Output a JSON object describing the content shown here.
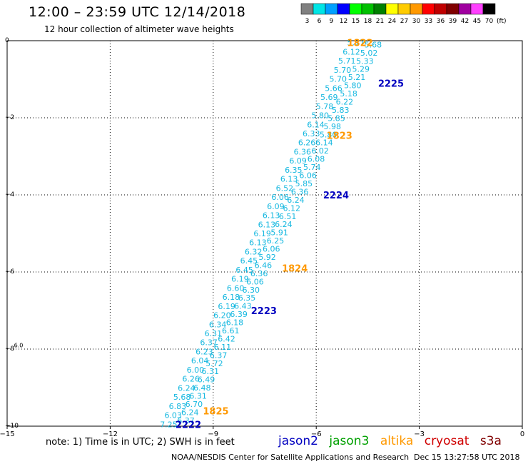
{
  "header": {
    "title": "12:00 – 23:59 UTC 12/14/2018",
    "subtitle": "12 hour collection of altimeter wave heights"
  },
  "colorbar": {
    "unit": "(ft)",
    "bins": [
      {
        "label": "3",
        "color": "#808080"
      },
      {
        "label": "6",
        "color": "#00e5e5"
      },
      {
        "label": "9",
        "color": "#00a0ff"
      },
      {
        "label": "12",
        "color": "#0000ff"
      },
      {
        "label": "15",
        "color": "#00ff00"
      },
      {
        "label": "18",
        "color": "#00c000"
      },
      {
        "label": "21",
        "color": "#008000"
      },
      {
        "label": "24",
        "color": "#ffff00"
      },
      {
        "label": "27",
        "color": "#ffcc00"
      },
      {
        "label": "30",
        "color": "#ff9900"
      },
      {
        "label": "33",
        "color": "#ff0000"
      },
      {
        "label": "36",
        "color": "#c00000"
      },
      {
        "label": "39",
        "color": "#800000"
      },
      {
        "label": "42",
        "color": "#a000a0"
      },
      {
        "label": "45",
        "color": "#ff40ff"
      },
      {
        "label": "70",
        "color": "#000000"
      }
    ]
  },
  "map": {
    "lon_range": [
      -15,
      0
    ],
    "lat_range": [
      -10,
      0
    ],
    "x_ticks": [
      "−15",
      "−12",
      "−9",
      "−6",
      "−3",
      "0"
    ],
    "y_ticks": [
      "0",
      "−2",
      "−4",
      "−6",
      "−8",
      "−10"
    ],
    "swh_color": "#16b8e0",
    "track_labels": [
      {
        "text": "1822",
        "lon": -5.1,
        "lat": -0.05,
        "color": "#ff9900"
      },
      {
        "text": "2225",
        "lon": -4.2,
        "lat": -1.1,
        "color": "#0000c0"
      },
      {
        "text": "1823",
        "lon": -5.7,
        "lat": -2.45,
        "color": "#ff9900"
      },
      {
        "text": "2224",
        "lon": -5.8,
        "lat": -4.0,
        "color": "#0000c0"
      },
      {
        "text": "1824",
        "lon": -7.0,
        "lat": -5.9,
        "color": "#ff9900"
      },
      {
        "text": "2223",
        "lon": -7.9,
        "lat": -7.0,
        "color": "#0000c0"
      },
      {
        "text": "1825",
        "lon": -9.3,
        "lat": -9.6,
        "color": "#ff9900"
      },
      {
        "text": "2222",
        "lon": -10.1,
        "lat": -9.95,
        "color": "#0000c0"
      }
    ],
    "tracks": [
      {
        "start": {
          "lon": -5.1,
          "lat": -0.05
        },
        "end": {
          "lon": -10.55,
          "lat": -9.95
        },
        "values": [
          "5.77",
          "6.12",
          "5.71",
          "5.70",
          "5.70",
          "5.66",
          "5.69",
          "5.78",
          "5.80",
          "6.14",
          "6.33",
          "6.26",
          "6.36",
          "6.09",
          "6.35",
          "6.13",
          "6.52",
          "6.06",
          "6.09",
          "6.13",
          "6.13",
          "6.19",
          "6.13",
          "6.32",
          "6.45",
          "6.45",
          "6.19",
          "6.60",
          "6.18",
          "6.19",
          "6.20",
          "6.34",
          "6.31",
          "6.37",
          "6.23",
          "6.04",
          "6.00",
          "6.26",
          "6.24",
          "5.68",
          "6.83",
          "6.03",
          "7.25"
        ]
      },
      {
        "start": {
          "lon": -4.6,
          "lat": -0.1
        },
        "end": {
          "lon": -10.05,
          "lat": -9.85
        },
        "values": [
          "5.68",
          "5.02",
          "5.33",
          "5.29",
          "5.21",
          "5.80",
          "5.18",
          "6.22",
          "5.83",
          "5.85",
          "5.98",
          "5.80",
          "6.14",
          "6.02",
          "6.08",
          "5.74",
          "6.06",
          "5.85",
          "6.36",
          "6.24",
          "6.12",
          "6.51",
          "6.24",
          "5.91",
          "6.25",
          "6.06",
          "5.92",
          "6.46",
          "6.36",
          "6.06",
          "6.30",
          "6.35",
          "6.43",
          "6.39",
          "6.18",
          "6.61",
          "6.42",
          "6.11",
          "6.37",
          "5.72",
          "6.31",
          "6.49",
          "6.48",
          "6.31",
          "6.70",
          "6.24",
          "6.37"
        ]
      }
    ],
    "marker": {
      "text": "6.0",
      "lon": -14.8,
      "lat": -7.95
    }
  },
  "note": "note:  1) Time is in UTC;  2) SWH is in feet",
  "legend": [
    {
      "text": "jason2",
      "color": "#0000c0"
    },
    {
      "text": "jason3",
      "color": "#00a000"
    },
    {
      "text": "altika",
      "color": "#ff9900"
    },
    {
      "text": "cryosat",
      "color": "#d00000"
    },
    {
      "text": "s3a",
      "color": "#800000"
    }
  ],
  "footer": {
    "credit": "NOAA/NESDIS Center for Satellite Applications and Research",
    "timestamp": "Dec 15 13:27:58 UTC 2018"
  }
}
